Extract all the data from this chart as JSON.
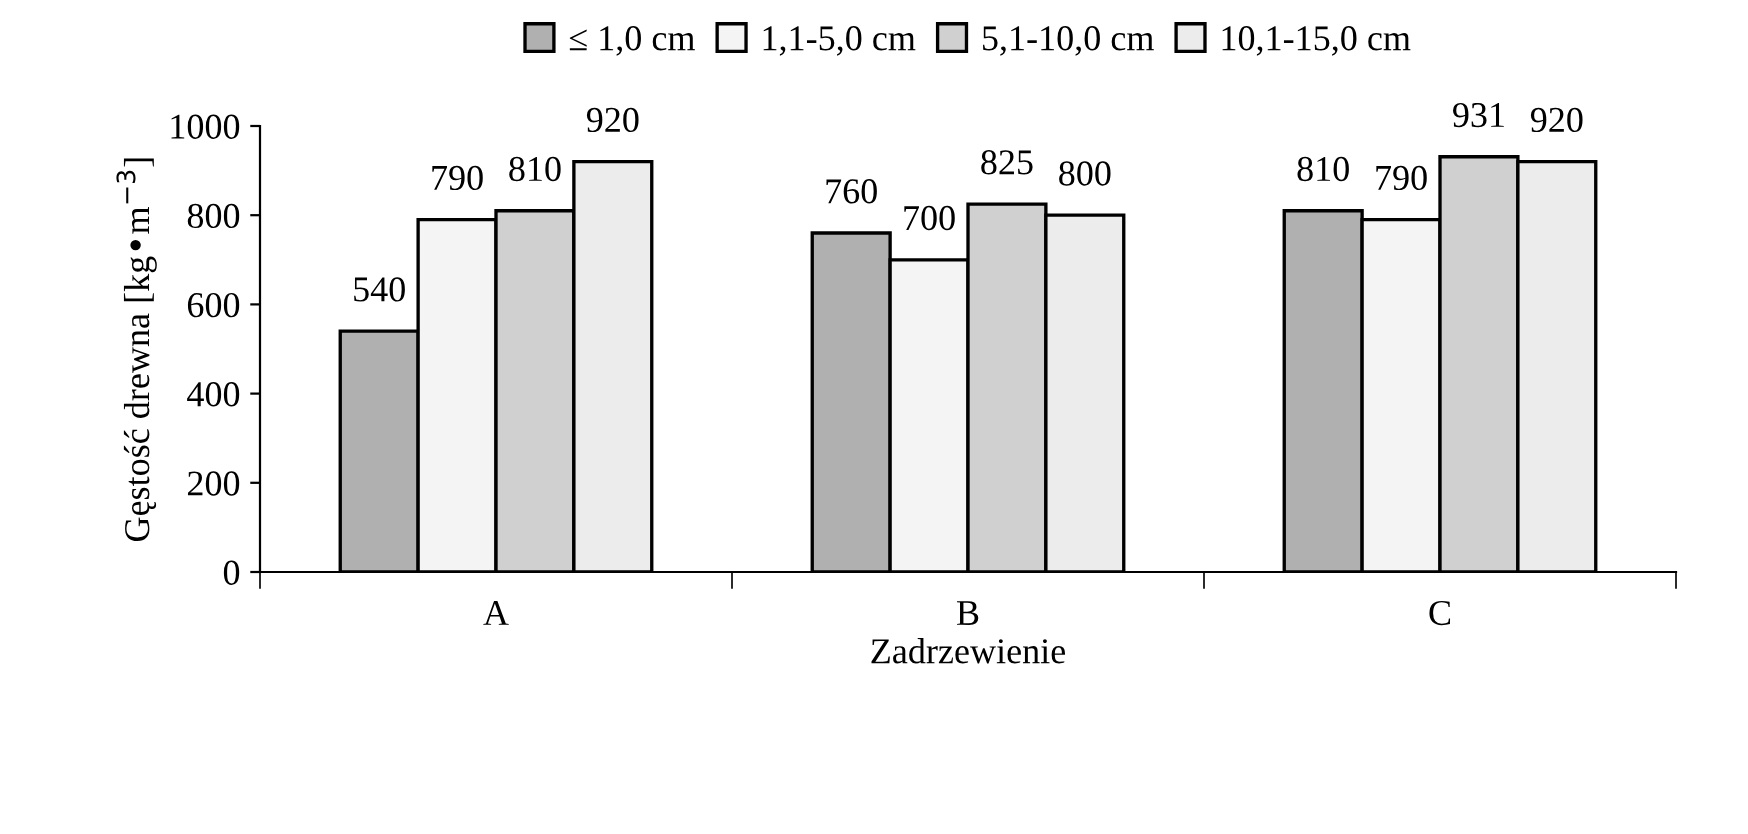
{
  "chart_data": {
    "type": "bar",
    "xlabel": "Zadrzewienie",
    "ylabel": "Gęstość drewna [kg•m$^{−3}$]",
    "categories": [
      "A",
      "B",
      "C"
    ],
    "series": [
      {
        "name": "≤ 1,0 cm",
        "color": "#b0b0b0",
        "values": [
          540,
          760,
          810
        ]
      },
      {
        "name": "1,1-5,0 cm",
        "color": "#f4f4f4",
        "values": [
          790,
          700,
          790
        ]
      },
      {
        "name": "5,1-10,0 cm",
        "color": "#d0d0d0",
        "values": [
          810,
          825,
          931
        ]
      },
      {
        "name": "10,1-15,0 cm",
        "color": "#ececec",
        "values": [
          920,
          800,
          920
        ]
      }
    ],
    "ylim": [
      0,
      1000
    ],
    "yticks": [
      0,
      200,
      400,
      600,
      800,
      1000
    ],
    "data_labels": true,
    "legend": "top",
    "grid": false
  }
}
